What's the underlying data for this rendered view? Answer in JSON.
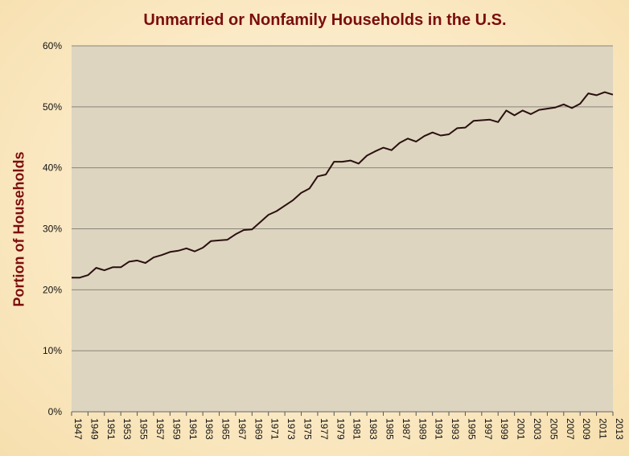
{
  "chart_data": {
    "type": "line",
    "title": "Unmarried or Nonfamily Households in the U.S.",
    "xlabel": "",
    "ylabel": "Portion of Households",
    "ylim": [
      0,
      60
    ],
    "y_ticks": [
      "0%",
      "10%",
      "20%",
      "30%",
      "40%",
      "50%",
      "60%"
    ],
    "x_tick_labels": [
      "1947",
      "1949",
      "1951",
      "1953",
      "1955",
      "1957",
      "1959",
      "1961",
      "1963",
      "1965",
      "1967",
      "1969",
      "1971",
      "1973",
      "1975",
      "1977",
      "1979",
      "1981",
      "1983",
      "1985",
      "1987",
      "1989",
      "1991",
      "1993",
      "1995",
      "1997",
      "1999",
      "2001",
      "2003",
      "2005",
      "2007",
      "2009",
      "2011",
      "2013"
    ],
    "grid": true,
    "legend": "none",
    "colors": {
      "line": "#2a0f0f",
      "plot_bg": "#ddd5c0",
      "title": "#7b0d0d",
      "grid": "#8a8578"
    },
    "series": [
      {
        "x": [
          1947,
          1948,
          1949,
          1950,
          1951,
          1952,
          1953,
          1954,
          1955,
          1956,
          1957,
          1958,
          1959,
          1960,
          1961,
          1962,
          1963,
          1964,
          1965,
          1966,
          1967,
          1968,
          1969,
          1970,
          1971,
          1972,
          1973,
          1974,
          1975,
          1976,
          1977,
          1978,
          1979,
          1980,
          1981,
          1982,
          1983,
          1984,
          1985,
          1986,
          1987,
          1988,
          1989,
          1990,
          1991,
          1992,
          1993,
          1994,
          1995,
          1996,
          1997,
          1998,
          1999,
          2000,
          2001,
          2002,
          2003,
          2004,
          2005,
          2006,
          2007,
          2008,
          2009,
          2010,
          2011,
          2012,
          2013
        ],
        "values": [
          22.0,
          22.0,
          22.4,
          23.6,
          23.2,
          23.7,
          23.7,
          24.6,
          24.8,
          24.4,
          25.3,
          25.7,
          26.2,
          26.4,
          26.8,
          26.3,
          26.9,
          28.0,
          28.1,
          28.2,
          29.1,
          29.8,
          29.9,
          31.1,
          32.3,
          32.9,
          33.8,
          34.7,
          35.9,
          36.6,
          38.6,
          38.9,
          41.0,
          41.0,
          41.2,
          40.7,
          42.0,
          42.7,
          43.3,
          42.9,
          44.1,
          44.8,
          44.3,
          45.2,
          45.8,
          45.3,
          45.5,
          46.5,
          46.6,
          47.7,
          47.8,
          47.9,
          47.5,
          49.4,
          48.6,
          49.4,
          48.8,
          49.5,
          49.7,
          49.9,
          50.4,
          49.8,
          50.5,
          52.2,
          51.9,
          52.4,
          52.0
        ]
      }
    ]
  }
}
